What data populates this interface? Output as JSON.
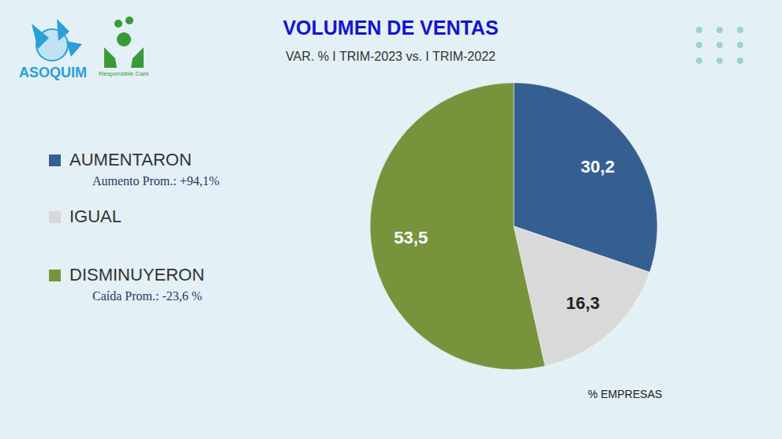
{
  "chart_data": {
    "type": "pie",
    "title": "VOLUMEN DE VENTAS",
    "subtitle": "VAR. % I TRIM-2023 vs. I TRIM-2022",
    "categories": [
      "AUMENTARON",
      "IGUAL",
      "DISMINUYERON"
    ],
    "values": [
      30.2,
      16.3,
      53.5
    ],
    "value_labels": [
      "30,2",
      "16,3",
      "53,5"
    ],
    "colors": [
      "#365f91",
      "#d9d9d9",
      "#77933c"
    ],
    "annotations": [
      "Aumento Prom.: +94,1%",
      null,
      "Caída Prom.: -23,6 %"
    ],
    "unit_label": "% EMPRESAS",
    "logo_texts": [
      "ASOQUIM",
      "Responsible Care"
    ],
    "data_labels": true,
    "legend": "left"
  }
}
